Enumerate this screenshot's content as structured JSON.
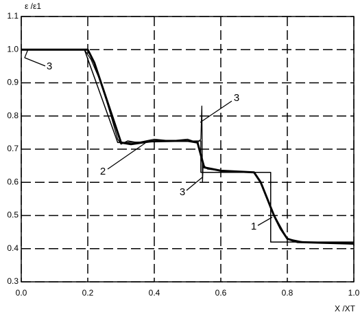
{
  "chart_data": {
    "type": "line",
    "y_label": "ε /ε1",
    "x_label": "X /XT",
    "xlim": [
      0,
      1
    ],
    "ylim": [
      0.3,
      1.1
    ],
    "xticks": [
      {
        "value": 0,
        "label": "0.0"
      },
      0.2,
      0.4,
      0.6,
      0.8,
      {
        "value": 1,
        "label": "1.0"
      }
    ],
    "yticks": [
      0.3,
      0.4,
      0.5,
      0.6,
      0.7,
      0.8,
      0.9,
      {
        "value": 1,
        "label": "1.0"
      },
      1.1
    ],
    "grid": true,
    "series": [
      {
        "name": "1",
        "color": "#000000",
        "x": [
          0,
          0.19,
          0.29,
          0.54,
          0.54,
          0.75,
          0.75,
          1.0
        ],
        "values": [
          1.0,
          1.0,
          0.72,
          0.725,
          0.63,
          0.63,
          0.42,
          0.42
        ]
      },
      {
        "name": "2",
        "color": "#000000",
        "x": [
          0,
          0.2,
          0.22,
          0.25,
          0.28,
          0.3,
          0.33,
          0.4,
          0.5,
          0.53,
          0.55,
          0.6,
          0.7,
          0.72,
          0.74,
          0.76,
          0.78,
          0.8,
          0.83,
          0.9,
          1.0
        ],
        "values": [
          1.0,
          1.0,
          0.96,
          0.87,
          0.78,
          0.72,
          0.715,
          0.725,
          0.725,
          0.72,
          0.645,
          0.635,
          0.63,
          0.6,
          0.55,
          0.5,
          0.46,
          0.43,
          0.42,
          0.418,
          0.415
        ]
      },
      {
        "name": "3",
        "color": "#000000",
        "x": [
          0.01,
          0.02,
          0.19,
          0.21,
          0.24,
          0.27,
          0.29,
          0.3,
          0.32,
          0.35,
          0.4,
          0.45,
          0.5,
          0.53,
          0.54,
          0.543,
          0.545,
          0.547,
          0.55,
          0.56,
          0.6,
          0.7,
          0.72,
          0.75,
          0.8,
          0.85,
          1.0
        ],
        "values": [
          0.975,
          1.0,
          1.0,
          0.97,
          0.9,
          0.8,
          0.73,
          0.715,
          0.725,
          0.72,
          0.73,
          0.725,
          0.73,
          0.72,
          0.73,
          0.83,
          0.6,
          0.66,
          0.65,
          0.64,
          0.635,
          0.63,
          0.6,
          0.52,
          0.43,
          0.42,
          0.415
        ]
      }
    ],
    "annotations": [
      "3",
      "3",
      "2",
      "3",
      "1"
    ]
  }
}
